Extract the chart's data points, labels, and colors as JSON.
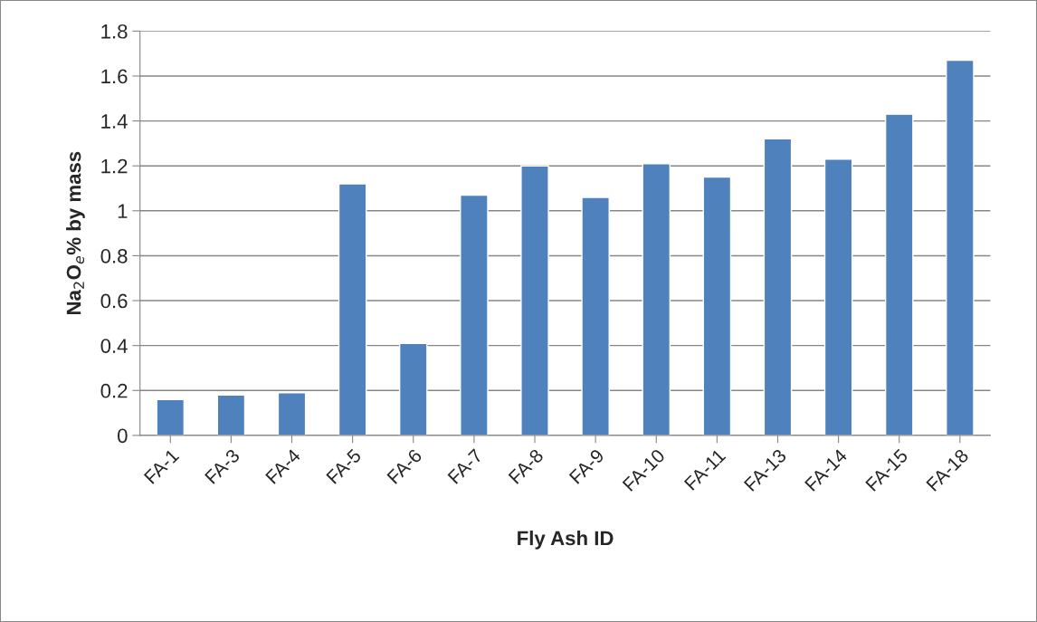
{
  "chart_data": {
    "type": "bar",
    "xlabel": "Fly Ash ID",
    "ylabel": "Na$_{2}$O$_{e}$% by mass",
    "categories": [
      "FA-1",
      "FA-3",
      "FA-4",
      "FA-5",
      "FA-6",
      "FA-7",
      "FA-8",
      "FA-9",
      "FA-10",
      "FA-11",
      "FA-13",
      "FA-14",
      "FA-15",
      "FA-18"
    ],
    "values": [
      0.16,
      0.18,
      0.19,
      1.12,
      0.41,
      1.07,
      1.2,
      1.06,
      1.21,
      1.15,
      1.32,
      1.23,
      1.43,
      1.67
    ],
    "color": "#4f81bd",
    "ylim": [
      0,
      1.8
    ],
    "yticks": [
      0,
      0.2,
      0.4,
      0.6,
      0.8,
      1,
      1.2,
      1.4,
      1.6,
      1.8
    ],
    "grid": "y"
  }
}
